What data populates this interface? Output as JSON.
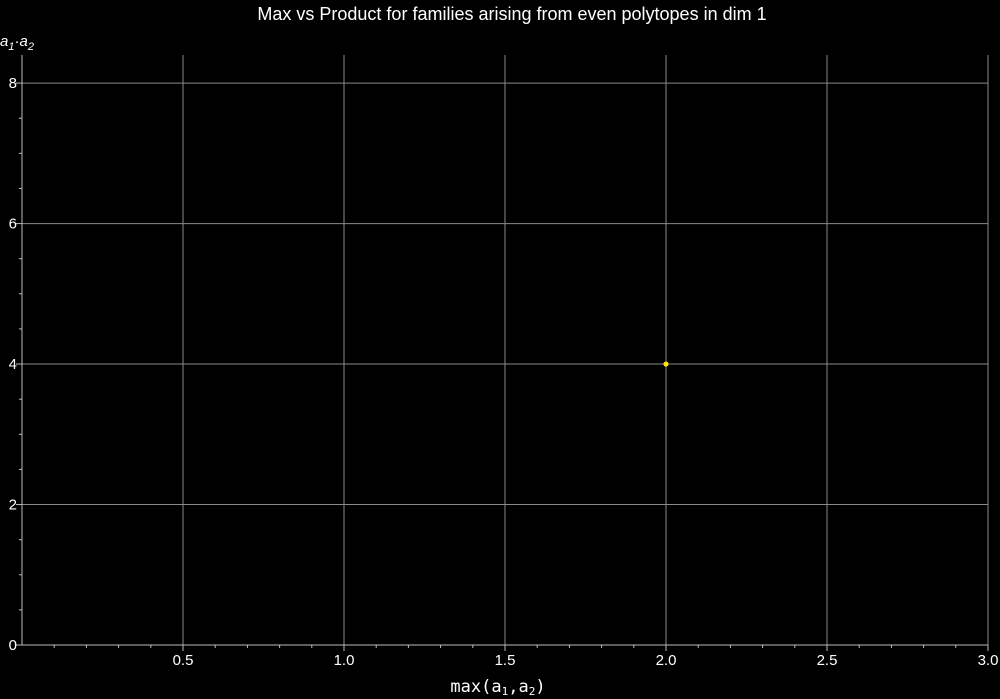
{
  "chart_data": {
    "type": "scatter",
    "title": "Max vs Product for families arising from even polytopes in dim 1",
    "ylabel": {
      "base1": "a",
      "sub1": "1",
      "dot": "·",
      "base2": "a",
      "sub2": "2"
    },
    "xlabel": {
      "func": "max",
      "open": "(",
      "base1": "a",
      "sub1": "1",
      "comma": ",",
      "base2": "a",
      "sub2": "2",
      "close": ")"
    },
    "xlim": [
      0,
      3.0
    ],
    "ylim": [
      0,
      8.4
    ],
    "x_ticks": [
      0.5,
      1.0,
      1.5,
      2.0,
      2.5,
      3.0
    ],
    "x_tick_labels": [
      "0.5",
      "1.0",
      "1.5",
      "2.0",
      "2.5",
      "3.0"
    ],
    "y_ticks": [
      0,
      2,
      4,
      6,
      8
    ],
    "y_tick_labels": [
      "0",
      "2",
      "4",
      "6",
      "8"
    ],
    "grid": true,
    "background": "#000000",
    "point_color": "#ffe600",
    "series": [
      {
        "points": [
          {
            "x": 2.0,
            "y": 4
          }
        ]
      }
    ]
  }
}
